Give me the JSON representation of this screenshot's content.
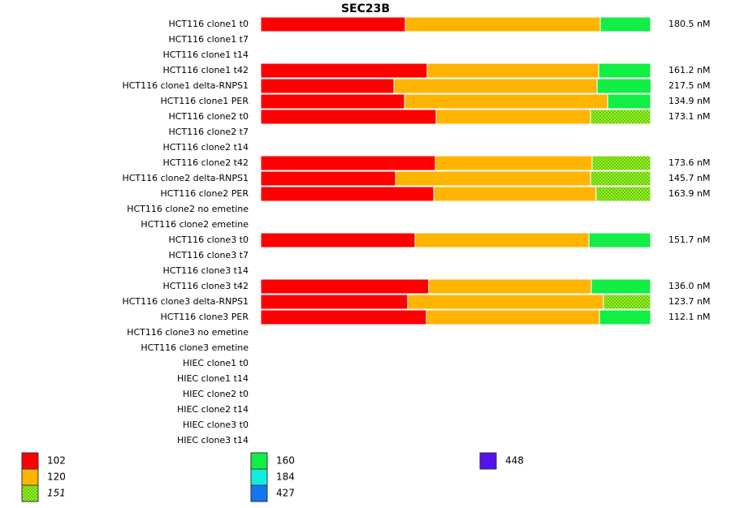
{
  "chart_data": {
    "type": "stacked-bar-horizontal",
    "title": "SEC23B",
    "categories": [
      "HCT116 clone1 t0",
      "HCT116 clone1 t7",
      "HCT116 clone1 t14",
      "HCT116 clone1 t42",
      "HCT116 clone1 delta-RNPS1",
      "HCT116 clone1 PER",
      "HCT116 clone2 t0",
      "HCT116 clone2 t7",
      "HCT116 clone2 t14",
      "HCT116 clone2 t42",
      "HCT116 clone2 delta-RNPS1",
      "HCT116 clone2 PER",
      "HCT116 clone2 no emetine",
      "HCT116 clone2 emetine",
      "HCT116 clone3 t0",
      "HCT116 clone3 t7",
      "HCT116 clone3 t14",
      "HCT116 clone3 t42",
      "HCT116 clone3 delta-RNPS1",
      "HCT116 clone3 PER",
      "HCT116 clone3 no emetine",
      "HCT116 clone3 emetine",
      "HIEC clone1 t0",
      "HIEC clone1 t14",
      "HIEC clone2 t0",
      "HIEC clone2 t14",
      "HIEC clone3 t0",
      "HIEC clone3 t14"
    ],
    "row_labels": [
      "180.5 nM",
      null,
      null,
      "161.2 nM",
      "217.5 nM",
      "134.9 nM",
      "173.1 nM",
      null,
      null,
      "173.6 nM",
      "145.7 nM",
      "163.9 nM",
      null,
      null,
      "151.7 nM",
      null,
      null,
      "136.0 nM",
      "123.7 nM",
      "112.1 nM",
      null,
      null,
      null,
      null,
      null,
      null,
      null,
      null
    ],
    "xlim": [
      0,
      100
    ],
    "series": [
      {
        "name": "102",
        "color": "#ff0000",
        "values": [
          37.1,
          null,
          null,
          42.7,
          34.2,
          36.9,
          45,
          null,
          null,
          44.8,
          34.6,
          44.4,
          null,
          null,
          39.6,
          null,
          null,
          43.1,
          37.7,
          42.5,
          null,
          null,
          null,
          null,
          null,
          null,
          null,
          null
        ]
      },
      {
        "name": "120",
        "color": "#ffb400",
        "values": [
          50,
          null,
          null,
          44,
          52.1,
          52.1,
          39.6,
          null,
          null,
          40.2,
          50,
          41.6,
          null,
          null,
          44.6,
          null,
          null,
          41.7,
          50.2,
          44.4,
          null,
          null,
          null,
          null,
          null,
          null,
          null,
          null
        ]
      },
      {
        "name": "151",
        "color": "#66ff00",
        "pattern": "checker",
        "font_style": "italic",
        "values": [
          null,
          null,
          null,
          null,
          null,
          null,
          15.4,
          null,
          null,
          15,
          15.4,
          14,
          null,
          null,
          null,
          null,
          null,
          null,
          12.1,
          null,
          null,
          null,
          null,
          null,
          null,
          null,
          null,
          null
        ]
      },
      {
        "name": "160",
        "color": "#11ee44",
        "values": [
          12.9,
          null,
          null,
          13.3,
          13.8,
          11,
          null,
          null,
          null,
          null,
          null,
          null,
          null,
          null,
          15.8,
          null,
          null,
          15.2,
          null,
          13.1,
          null,
          null,
          null,
          null,
          null,
          null,
          null,
          null
        ]
      },
      {
        "name": "184",
        "color": "#11eedd",
        "values": [
          null,
          null,
          null,
          null,
          null,
          null,
          null,
          null,
          null,
          null,
          null,
          null,
          null,
          null,
          null,
          null,
          null,
          null,
          null,
          null,
          null,
          null,
          null,
          null,
          null,
          null,
          null,
          null
        ]
      },
      {
        "name": "427",
        "color": "#1177ee",
        "values": [
          null,
          null,
          null,
          null,
          null,
          null,
          null,
          null,
          null,
          null,
          null,
          null,
          null,
          null,
          null,
          null,
          null,
          null,
          null,
          null,
          null,
          null,
          null,
          null,
          null,
          null,
          null,
          null
        ]
      },
      {
        "name": "448",
        "color": "#5511ee",
        "values": [
          null,
          null,
          null,
          null,
          null,
          null,
          null,
          null,
          null,
          null,
          null,
          null,
          null,
          null,
          null,
          null,
          null,
          null,
          null,
          null,
          null,
          null,
          null,
          null,
          null,
          null,
          null,
          null
        ]
      }
    ]
  }
}
